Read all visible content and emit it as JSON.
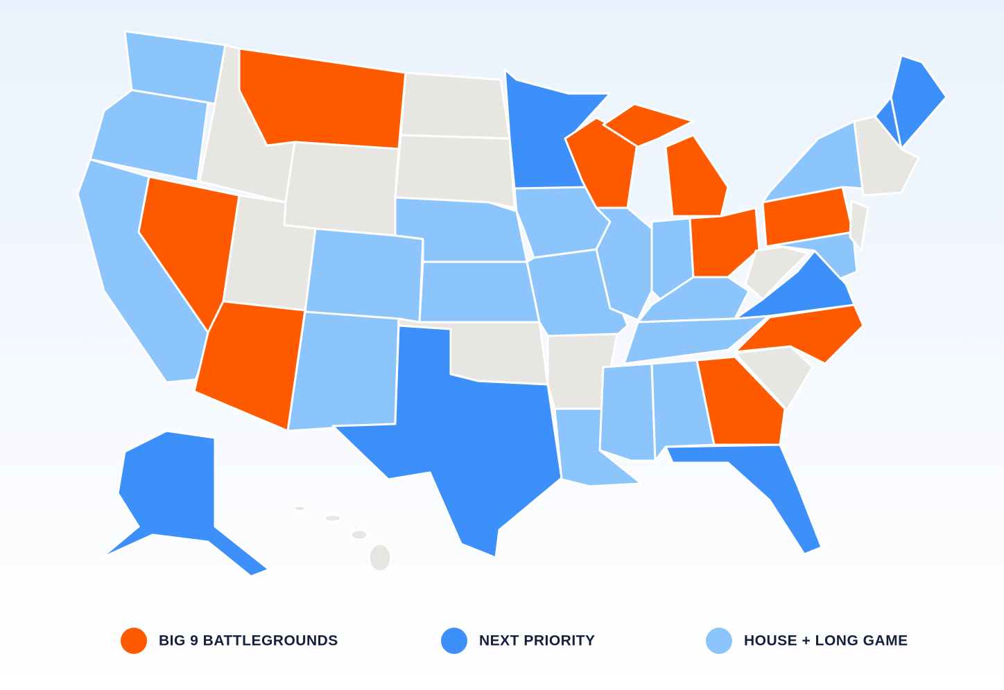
{
  "legend": {
    "items": [
      {
        "label": "BIG 9 BATTLEGROUNDS",
        "color": "#ff5a00"
      },
      {
        "label": "NEXT PRIORITY",
        "color": "#3d8ff9"
      },
      {
        "label": "HOUSE + LONG GAME",
        "color": "#8cc5fc"
      }
    ]
  }
}
